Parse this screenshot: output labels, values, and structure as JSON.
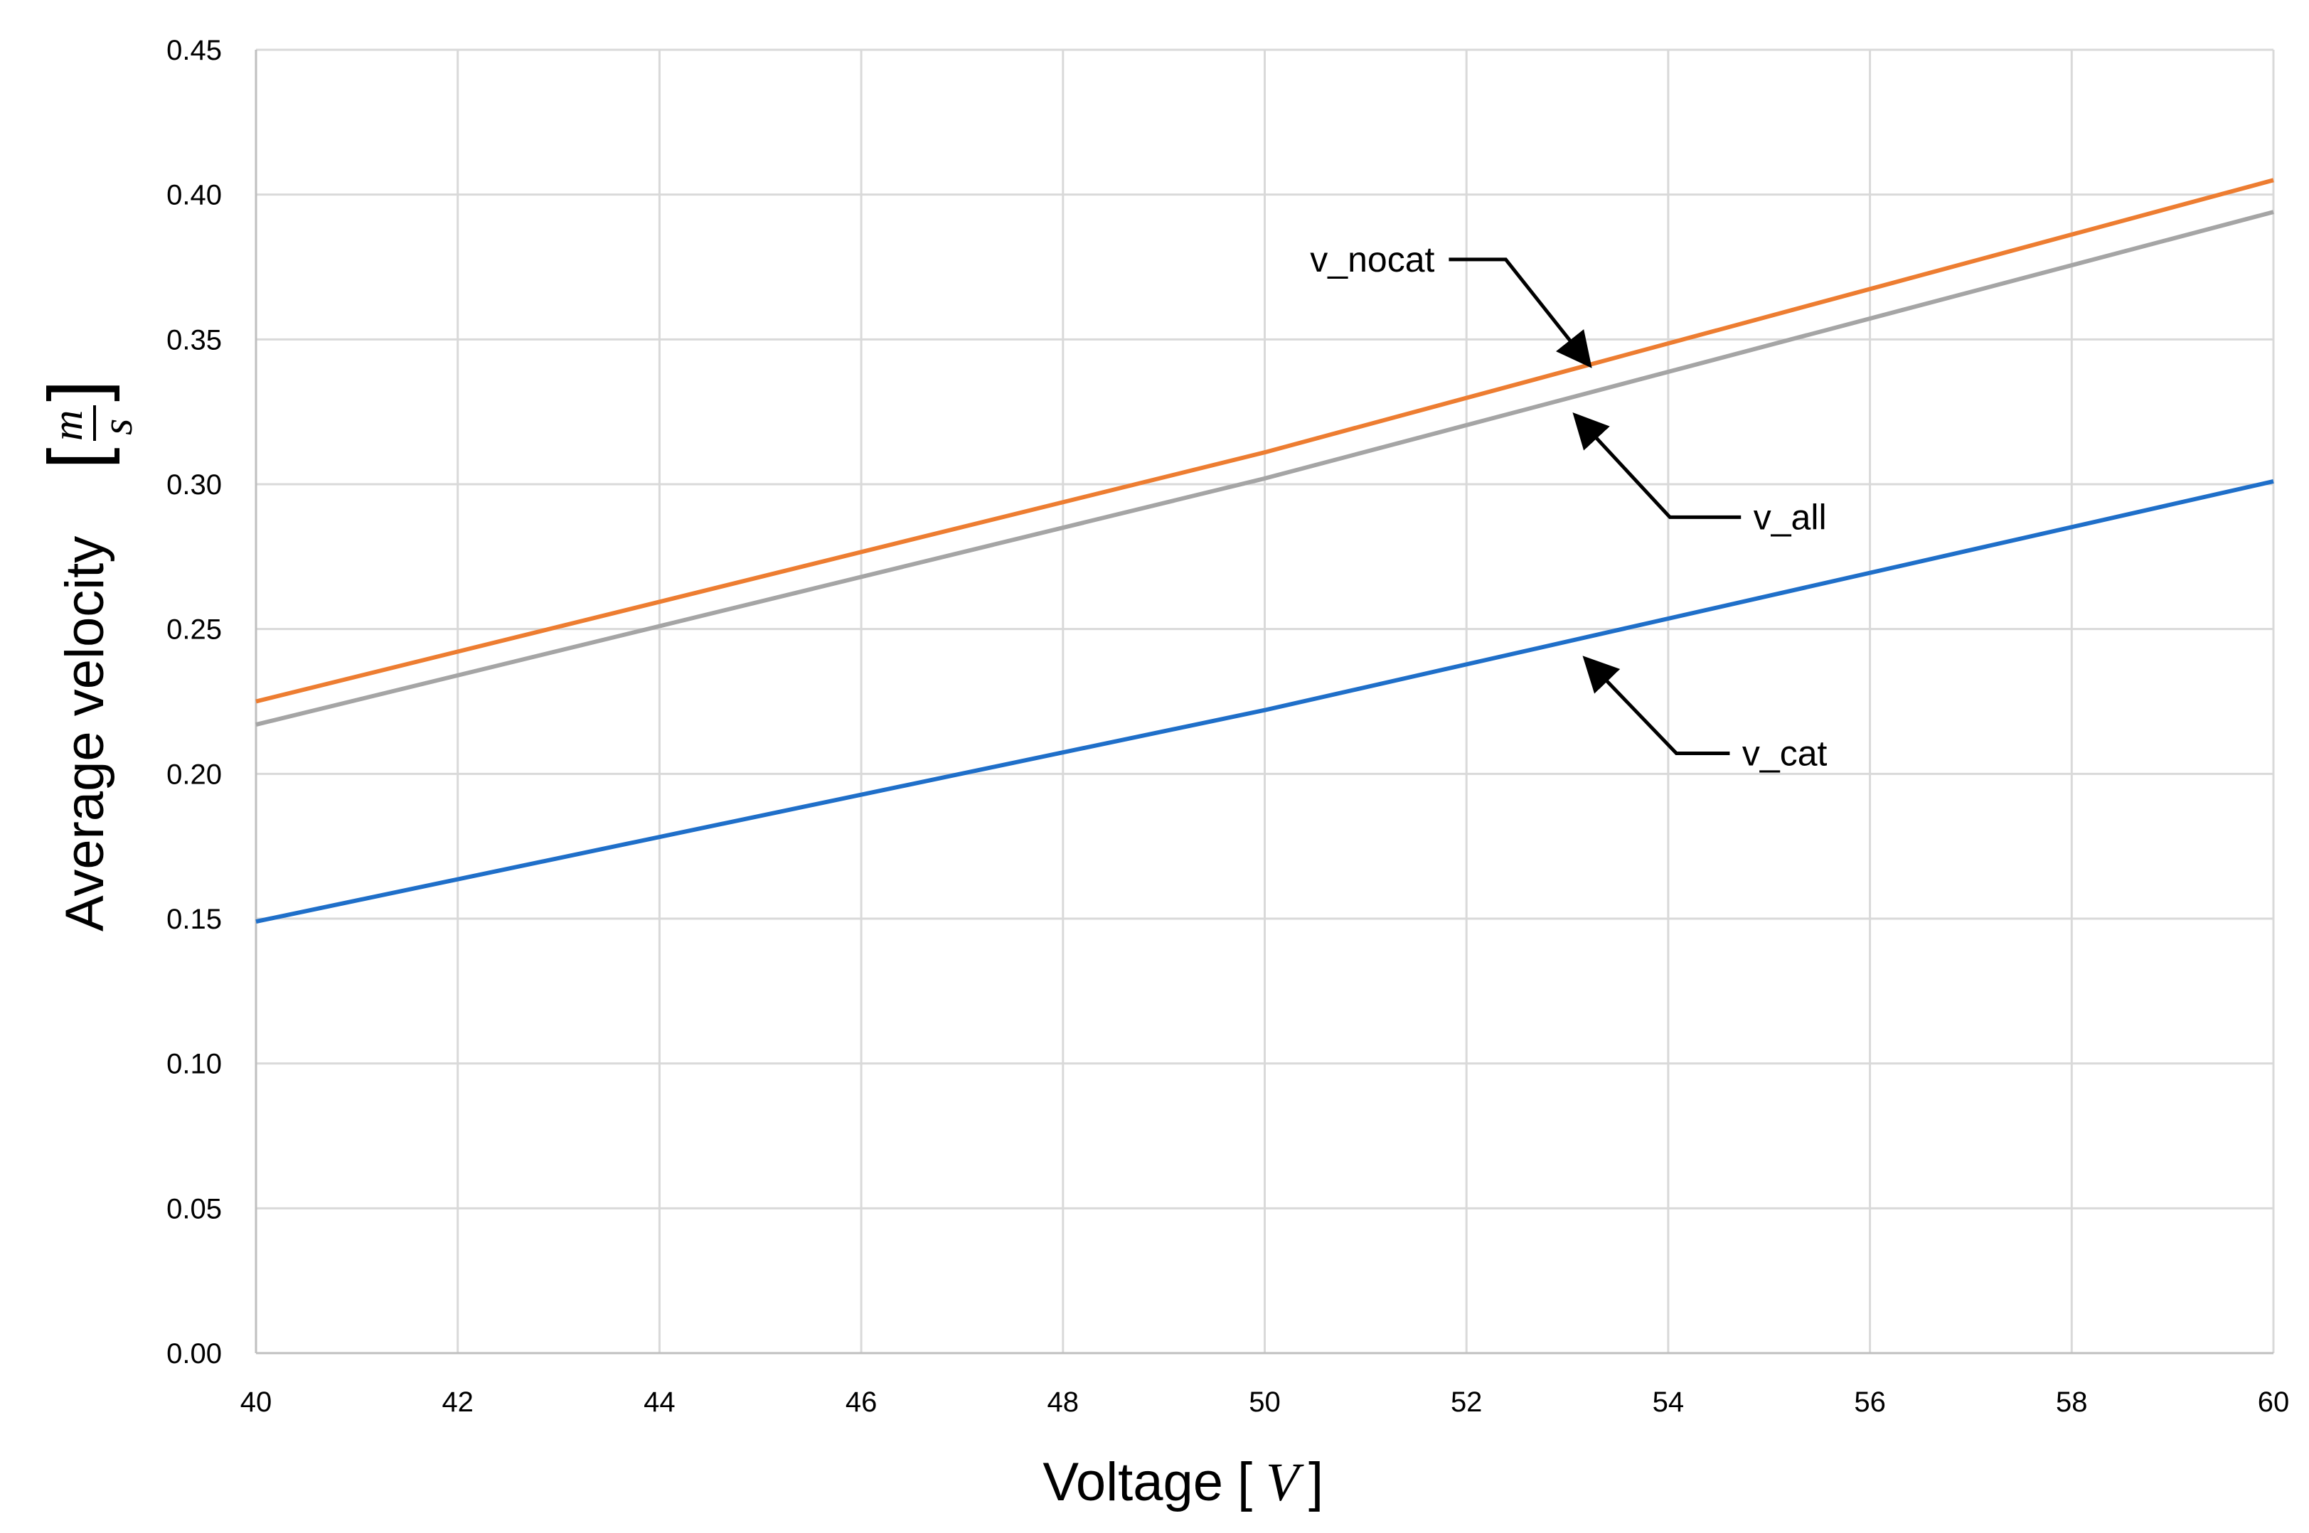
{
  "chart_data": {
    "type": "line",
    "title": "",
    "xlabel": "Voltage",
    "xlabel_unit": "V",
    "ylabel": "Average velocity",
    "ylabel_unit_num": "m",
    "ylabel_unit_den": "s",
    "xlim": [
      40,
      60
    ],
    "ylim": [
      0,
      0.45
    ],
    "grid": true,
    "x_ticks": [
      "40",
      "42",
      "44",
      "46",
      "48",
      "50",
      "52",
      "54",
      "56",
      "58",
      "60"
    ],
    "y_ticks": [
      "0.00",
      "0.05",
      "0.10",
      "0.15",
      "0.20",
      "0.25",
      "0.30",
      "0.35",
      "0.40",
      "0.45"
    ],
    "x": [
      40,
      50,
      60
    ],
    "series": [
      {
        "name": "v_nocat",
        "color": "#ED7D31",
        "values": [
          0.225,
          0.311,
          0.405
        ]
      },
      {
        "name": "v_all",
        "color": "#A5A5A5",
        "values": [
          0.217,
          0.302,
          0.394
        ]
      },
      {
        "name": "v_cat",
        "color": "#1F6FC9",
        "values": [
          0.149,
          0.222,
          0.301
        ]
      }
    ],
    "annotations": [
      {
        "label": "v_nocat",
        "target_series": "v_nocat",
        "target_x": 53.2,
        "target_y": 0.342
      },
      {
        "label": "v_all",
        "target_series": "v_all",
        "target_x": 53.1,
        "target_y": 0.323
      },
      {
        "label": "v_cat",
        "target_series": "v_cat",
        "target_x": 53.2,
        "target_y": 0.239
      }
    ]
  }
}
